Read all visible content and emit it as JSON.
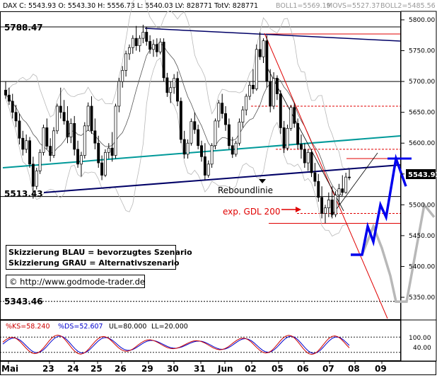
{
  "header": {
    "title": "DAX C: 5543.93 O: 5543.30 H: 5556.73 L: 5540.03 LV: 828771 TotV: 828771",
    "boll1": "BOLL1=5569.19",
    "movs": "MOVS=5527.37",
    "boll2": "BOLL2=5485.56"
  },
  "levels": {
    "l1": "5788.47",
    "l2": "5513.43",
    "l3": "5343.46"
  },
  "price_badge": "5543.93",
  "annotations": {
    "reboundlinie": "Reboundlinie",
    "gdl": "exp. GDL 200",
    "legend_blue": "Skizzierung BLAU = bevorzugtes Szenario",
    "legend_grey": "Skizzierung GRAU = Alternativszenario",
    "copyright": "© http://www.godmode-trader.de"
  },
  "oscillator": {
    "header_ks": "%KS=58.240",
    "header_ds": "%DS=52.607",
    "header_ul": "UL=80.000",
    "header_ll": "LL=20.000",
    "tick_100": "100.00",
    "tick_40": "40.00"
  },
  "chart_data": {
    "type": "candlestick",
    "instrument": "DAX",
    "interval": "60 minutes",
    "colors": {
      "up": "#ffffff",
      "down": "#000000",
      "blue": "#0000ee",
      "grey": "#b8b8b8",
      "red": "#e00000",
      "teal": "#009999",
      "navy": "#000066"
    },
    "price_axis": {
      "min": 5320,
      "max": 5810,
      "ticks": [
        "5800.00",
        "5750.00",
        "5700.00",
        "5650.00",
        "5600.00",
        "5550.00",
        "5500.00",
        "5450.00",
        "5400.00",
        "5350.00"
      ]
    },
    "date_axis": [
      "Mai",
      "23",
      "24",
      "25",
      "26",
      "29",
      "30",
      "31",
      "Jun",
      "02",
      "05",
      "06",
      "07",
      "08",
      "09"
    ],
    "ohlc": [
      [
        5686,
        5700,
        5672,
        5678
      ],
      [
        5678,
        5690,
        5662,
        5668
      ],
      [
        5668,
        5680,
        5640,
        5650
      ],
      [
        5650,
        5662,
        5626,
        5636
      ],
      [
        5636,
        5648,
        5598,
        5608
      ],
      [
        5608,
        5620,
        5580,
        5590
      ],
      [
        5590,
        5614,
        5584,
        5604
      ],
      [
        5604,
        5610,
        5560,
        5566
      ],
      [
        5566,
        5578,
        5510,
        5530
      ],
      [
        5530,
        5560,
        5525,
        5555
      ],
      [
        5555,
        5590,
        5550,
        5585
      ],
      [
        5585,
        5630,
        5580,
        5625
      ],
      [
        5625,
        5640,
        5590,
        5595
      ],
      [
        5595,
        5608,
        5570,
        5580
      ],
      [
        5580,
        5626,
        5576,
        5620
      ],
      [
        5620,
        5664,
        5615,
        5660
      ],
      [
        5660,
        5690,
        5640,
        5650
      ],
      [
        5650,
        5670,
        5630,
        5636
      ],
      [
        5636,
        5660,
        5600,
        5610
      ],
      [
        5610,
        5640,
        5600,
        5632
      ],
      [
        5632,
        5644,
        5580,
        5590
      ],
      [
        5590,
        5604,
        5560,
        5566
      ],
      [
        5566,
        5586,
        5546,
        5580
      ],
      [
        5580,
        5634,
        5575,
        5628
      ],
      [
        5628,
        5666,
        5620,
        5660
      ],
      [
        5660,
        5676,
        5615,
        5620
      ],
      [
        5620,
        5640,
        5590,
        5600
      ],
      [
        5600,
        5612,
        5560,
        5568
      ],
      [
        5568,
        5580,
        5540,
        5548
      ],
      [
        5548,
        5590,
        5545,
        5585
      ],
      [
        5585,
        5600,
        5575,
        5592
      ],
      [
        5592,
        5618,
        5570,
        5580
      ],
      [
        5580,
        5664,
        5575,
        5660
      ],
      [
        5660,
        5706,
        5650,
        5700
      ],
      [
        5700,
        5725,
        5690,
        5718
      ],
      [
        5718,
        5750,
        5708,
        5745
      ],
      [
        5745,
        5760,
        5735,
        5755
      ],
      [
        5755,
        5775,
        5745,
        5770
      ],
      [
        5770,
        5790,
        5750,
        5758
      ],
      [
        5758,
        5775,
        5748,
        5770
      ],
      [
        5770,
        5792,
        5762,
        5780
      ],
      [
        5780,
        5788,
        5758,
        5765
      ],
      [
        5765,
        5775,
        5745,
        5752
      ],
      [
        5752,
        5768,
        5740,
        5760
      ],
      [
        5760,
        5770,
        5740,
        5748
      ],
      [
        5748,
        5770,
        5744,
        5764
      ],
      [
        5764,
        5770,
        5700,
        5706
      ],
      [
        5706,
        5714,
        5675,
        5682
      ],
      [
        5682,
        5700,
        5665,
        5690
      ],
      [
        5690,
        5712,
        5680,
        5705
      ],
      [
        5705,
        5716,
        5660,
        5668
      ],
      [
        5668,
        5674,
        5600,
        5606
      ],
      [
        5606,
        5620,
        5575,
        5582
      ],
      [
        5582,
        5606,
        5575,
        5600
      ],
      [
        5600,
        5640,
        5596,
        5635
      ],
      [
        5635,
        5650,
        5615,
        5622
      ],
      [
        5622,
        5630,
        5590,
        5596
      ],
      [
        5596,
        5604,
        5570,
        5578
      ],
      [
        5578,
        5600,
        5540,
        5548
      ],
      [
        5548,
        5572,
        5544,
        5566
      ],
      [
        5566,
        5600,
        5560,
        5596
      ],
      [
        5596,
        5640,
        5590,
        5636
      ],
      [
        5636,
        5670,
        5625,
        5665
      ],
      [
        5665,
        5680,
        5640,
        5648
      ],
      [
        5648,
        5660,
        5620,
        5630
      ],
      [
        5630,
        5640,
        5590,
        5596
      ],
      [
        5596,
        5610,
        5576,
        5582
      ],
      [
        5582,
        5604,
        5578,
        5600
      ],
      [
        5600,
        5640,
        5596,
        5634
      ],
      [
        5634,
        5660,
        5625,
        5654
      ],
      [
        5654,
        5680,
        5645,
        5676
      ],
      [
        5676,
        5700,
        5670,
        5694
      ],
      [
        5694,
        5720,
        5680,
        5688
      ],
      [
        5688,
        5760,
        5685,
        5752
      ],
      [
        5752,
        5780,
        5735,
        5740
      ],
      [
        5740,
        5770,
        5730,
        5766
      ],
      [
        5766,
        5775,
        5690,
        5700
      ],
      [
        5700,
        5720,
        5650,
        5660
      ],
      [
        5660,
        5715,
        5655,
        5705
      ],
      [
        5705,
        5710,
        5670,
        5680
      ],
      [
        5680,
        5686,
        5615,
        5625
      ],
      [
        5625,
        5636,
        5584,
        5592
      ],
      [
        5592,
        5630,
        5588,
        5624
      ],
      [
        5624,
        5662,
        5620,
        5658
      ],
      [
        5658,
        5665,
        5625,
        5632
      ],
      [
        5632,
        5640,
        5590,
        5598
      ],
      [
        5598,
        5614,
        5575,
        5590
      ],
      [
        5590,
        5600,
        5560,
        5568
      ],
      [
        5568,
        5590,
        5555,
        5585
      ],
      [
        5585,
        5590,
        5545,
        5552
      ],
      [
        5552,
        5568,
        5530,
        5538
      ],
      [
        5538,
        5550,
        5505,
        5512
      ],
      [
        5512,
        5530,
        5478,
        5486
      ],
      [
        5486,
        5500,
        5470,
        5495
      ],
      [
        5495,
        5520,
        5480,
        5508
      ],
      [
        5508,
        5530,
        5478,
        5484
      ],
      [
        5484,
        5522,
        5480,
        5516
      ],
      [
        5516,
        5534,
        5500,
        5526
      ],
      [
        5526,
        5548,
        5515,
        5520
      ],
      [
        5520,
        5552,
        5518,
        5545
      ],
      [
        5545,
        5557,
        5540,
        5544
      ]
    ],
    "levels": [
      5788.47,
      5513.43,
      5343.46
    ],
    "annotations": [
      "Reboundlinie",
      "exp. GDL 200"
    ],
    "stochastic": {
      "ks": 58.24,
      "ds": 52.607,
      "ul": 80,
      "ll": 20
    }
  }
}
